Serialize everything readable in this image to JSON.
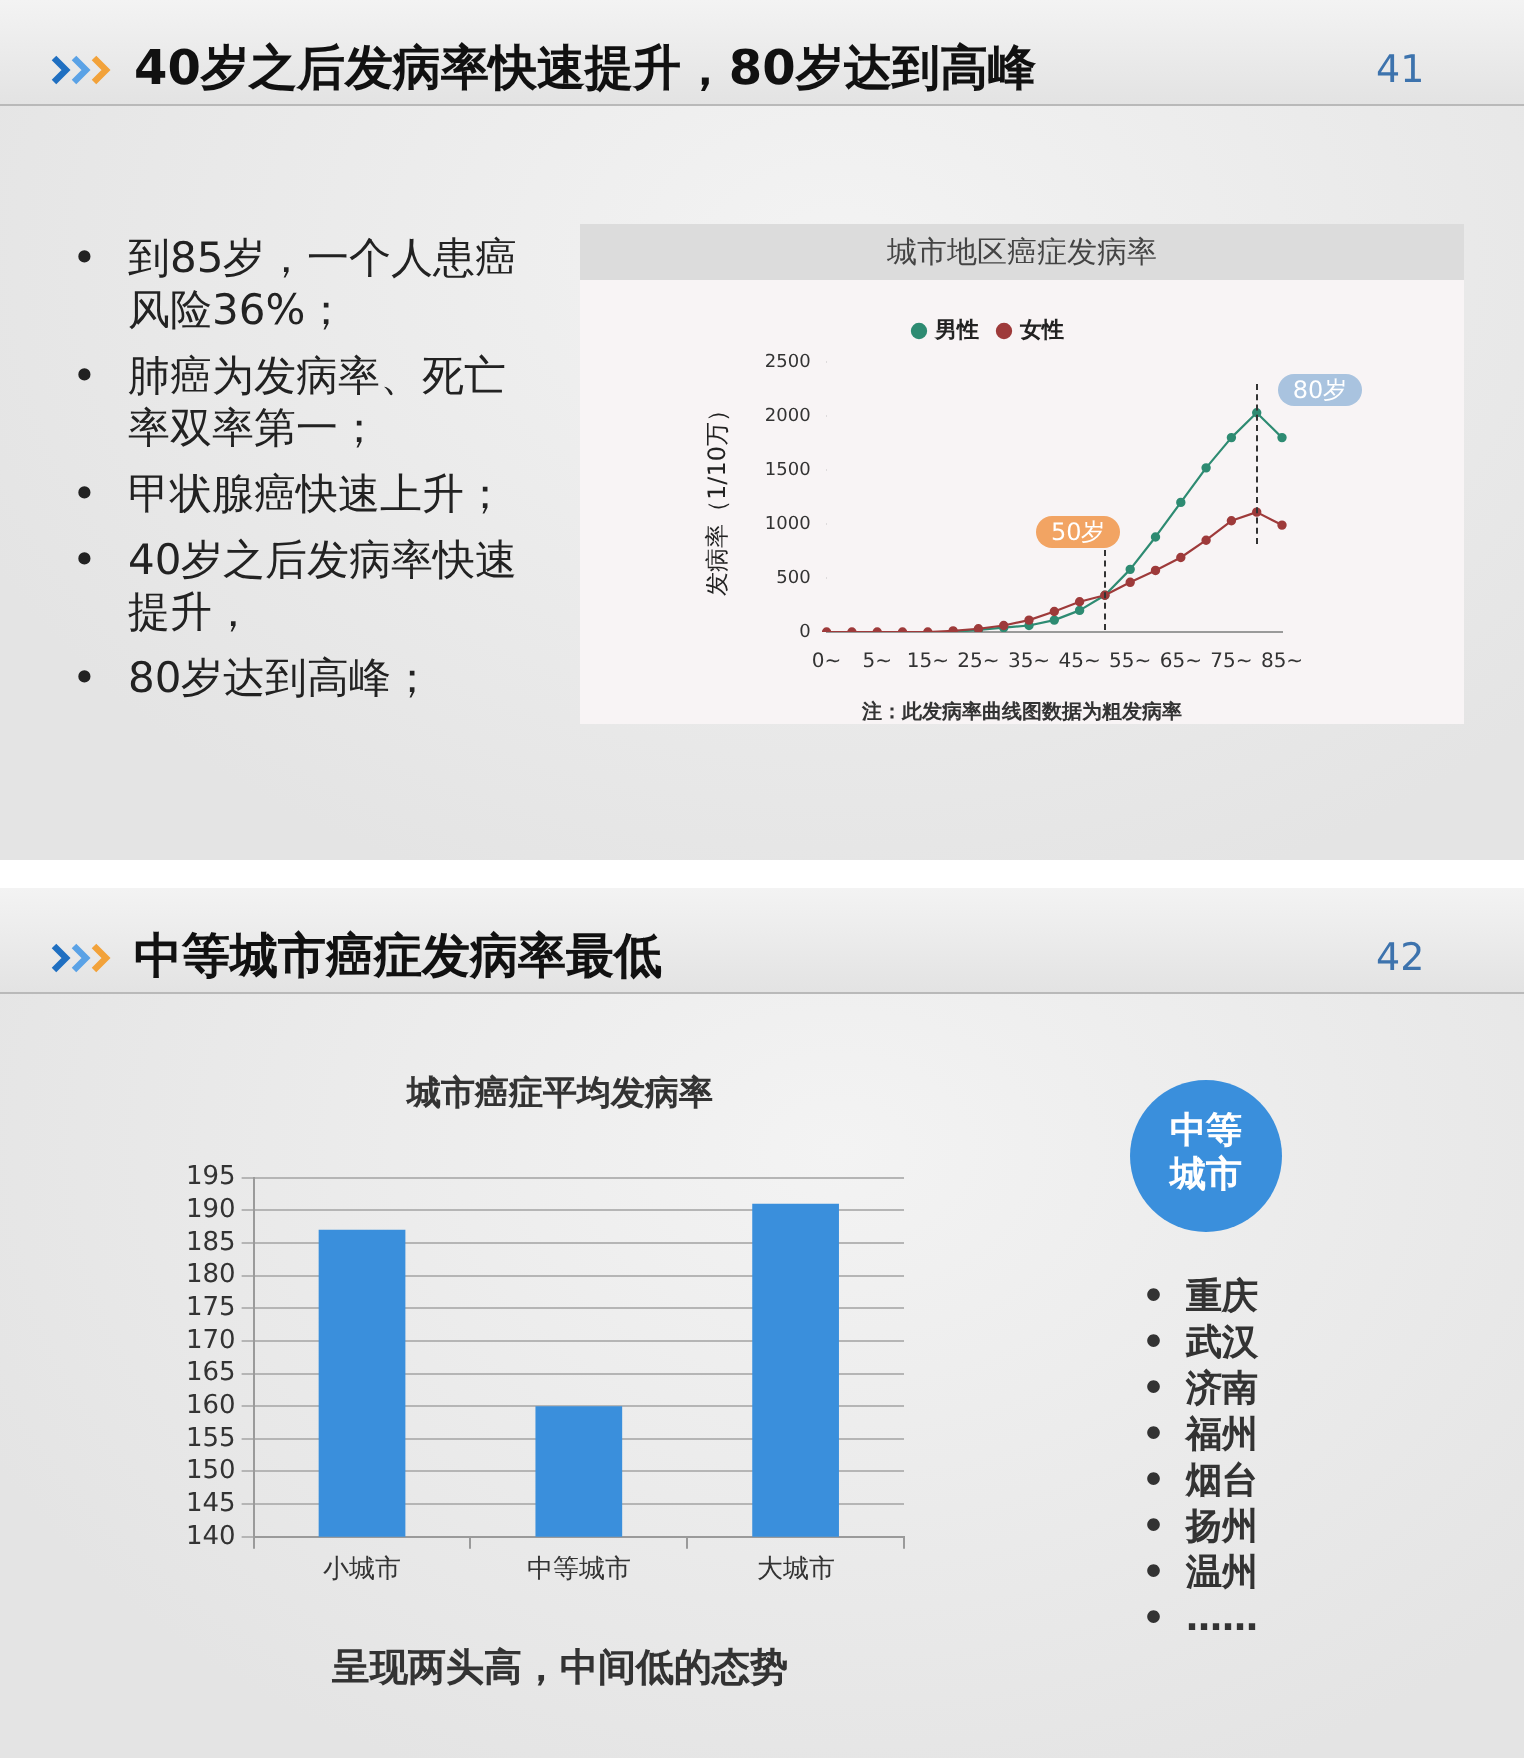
{
  "chart_data": [
    {
      "type": "line",
      "title": "40岁之后发病率快速提升，80岁达到高峰",
      "subtitle": "城市地区癌症发病率",
      "ylabel": "发病率（1/10万）",
      "categories": [
        "0~",
        null,
        "5~",
        null,
        "15~",
        null,
        "25~",
        null,
        "35~",
        null,
        "45~",
        null,
        "55~",
        null,
        "65~",
        null,
        "75~",
        null,
        "85~"
      ],
      "series": [
        {
          "name": "男性",
          "color": "#2e8b72",
          "values": [
            null,
            null,
            null,
            null,
            null,
            0,
            20,
            40,
            60,
            110,
            200,
            340,
            580,
            880,
            1200,
            1520,
            1800,
            2030,
            1800
          ]
        },
        {
          "name": "女性",
          "color": "#9e3a3a",
          "values": [
            0,
            0,
            0,
            0,
            0,
            10,
            30,
            60,
            110,
            190,
            280,
            340,
            460,
            570,
            690,
            850,
            1030,
            1110,
            990
          ]
        }
      ],
      "ylim": [
        0,
        2500
      ],
      "yticks": [
        0,
        500,
        1000,
        1500,
        2000,
        2500
      ],
      "grid": false,
      "legend": "top",
      "marker": "circle",
      "line_style": "solid",
      "annotations": [
        "41",
        "• 到85岁，一个人患癌风险36%；",
        "• 肺癌为发病率、死亡率双率第一；",
        "• 甲状腺癌快速上升；",
        "• 40岁之后发病率快速提升，",
        "• 80岁达到高峰；",
        "50岁",
        "80岁",
        "注：此发病率曲线图数据为粗发病率"
      ]
    },
    {
      "type": "bar",
      "title": "中等城市癌症发病率最低",
      "subtitle": "城市癌症平均发病率",
      "categories": [
        "小城市",
        "中等城市",
        "大城市"
      ],
      "values": [
        187,
        160,
        191
      ],
      "color": "#3a8fdc",
      "ylim": [
        140,
        195
      ],
      "yticks": [
        140,
        145,
        150,
        155,
        160,
        165,
        170,
        175,
        180,
        185,
        190,
        195
      ],
      "grid": "y",
      "legend": false,
      "annotations": [
        "42",
        "中等城市",
        "• 重庆",
        "• 武汉",
        "• 济南",
        "• 福州",
        "• 烟台",
        "• 扬州",
        "• 温州",
        "• ……",
        "呈现两头高，中间低的态势"
      ]
    }
  ]
}
